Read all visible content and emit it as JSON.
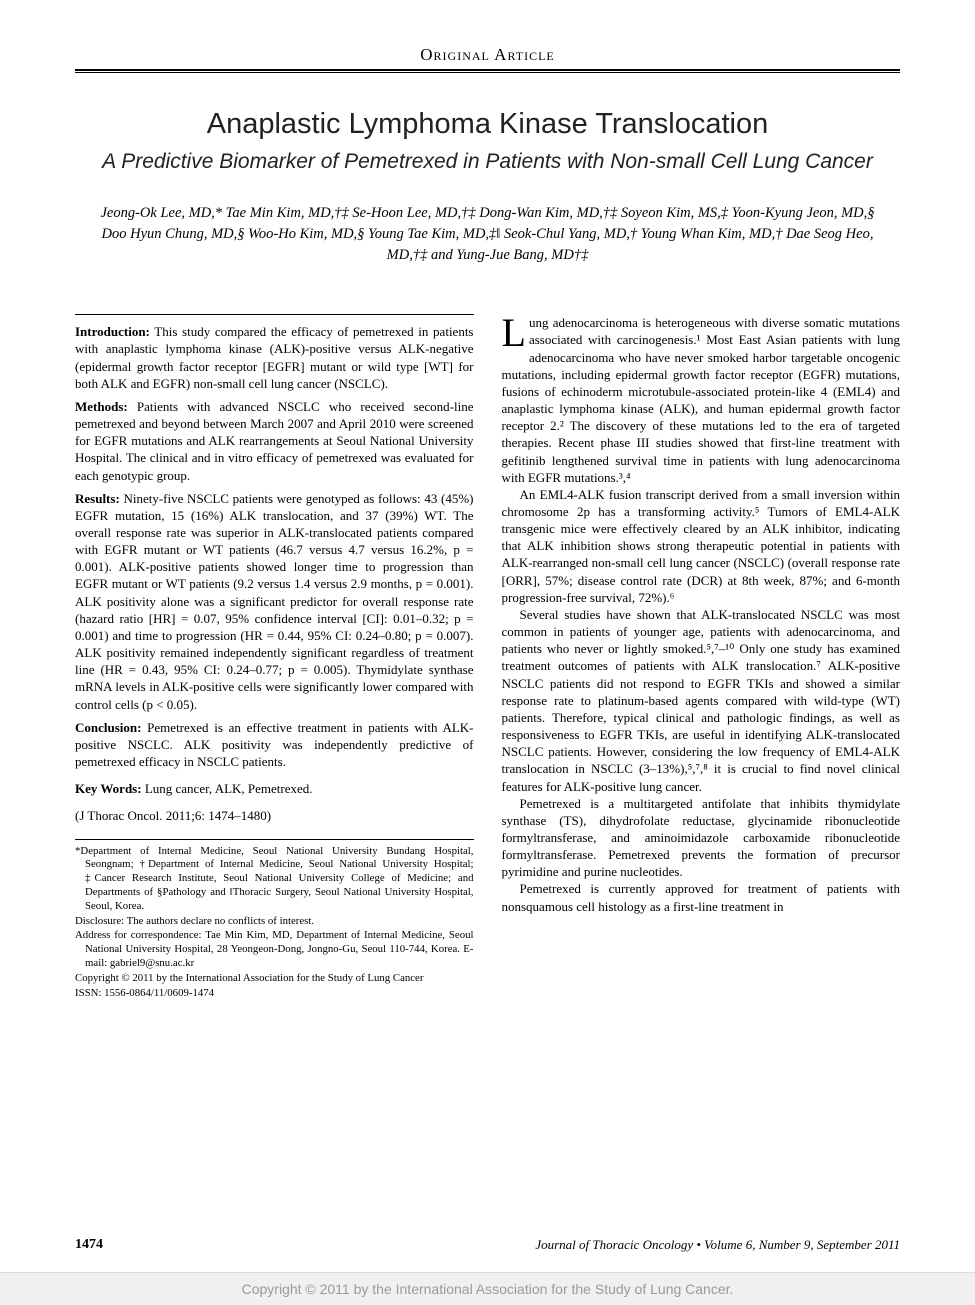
{
  "header": {
    "section": "Original Article"
  },
  "title": "Anaplastic Lymphoma Kinase Translocation",
  "subtitle": "A Predictive Biomarker of Pemetrexed in Patients with Non-small Cell Lung Cancer",
  "authors": "Jeong-Ok Lee, MD,* Tae Min Kim, MD,†‡ Se-Hoon Lee, MD,†‡ Dong-Wan Kim, MD,†‡ Soyeon Kim, MS,‡ Yoon-Kyung Jeon, MD,§ Doo Hyun Chung, MD,§ Woo-Ho Kim, MD,§ Young Tae Kim, MD,‡‖ Seok-Chul Yang, MD,† Young Whan Kim, MD,† Dae Seog Heo, MD,†‡ and Yung-Jue Bang, MD†‡",
  "abstract": {
    "introduction_label": "Introduction:",
    "introduction": " This study compared the efficacy of pemetrexed in patients with anaplastic lymphoma kinase (ALK)-positive versus ALK-negative (epidermal growth factor receptor [EGFR] mutant or wild type [WT] for both ALK and EGFR) non-small cell lung cancer (NSCLC).",
    "methods_label": "Methods:",
    "methods": " Patients with advanced NSCLC who received second-line pemetrexed and beyond between March 2007 and April 2010 were screened for EGFR mutations and ALK rearrangements at Seoul National University Hospital. The clinical and in vitro efficacy of pemetrexed was evaluated for each genotypic group.",
    "results_label": "Results:",
    "results": " Ninety-five NSCLC patients were genotyped as follows: 43 (45%) EGFR mutation, 15 (16%) ALK translocation, and 37 (39%) WT. The overall response rate was superior in ALK-translocated patients compared with EGFR mutant or WT patients (46.7 versus 4.7 versus 16.2%, p = 0.001). ALK-positive patients showed longer time to progression than EGFR mutant or WT patients (9.2 versus 1.4 versus 2.9 months, p = 0.001). ALK positivity alone was a significant predictor for overall response rate (hazard ratio [HR] = 0.07, 95% confidence interval [CI]: 0.01–0.32; p = 0.001) and time to progression (HR = 0.44, 95% CI: 0.24–0.80; p = 0.007). ALK positivity remained independently significant regardless of treatment line (HR = 0.43, 95% CI: 0.24–0.77; p = 0.005). Thymidylate synthase mRNA levels in ALK-positive cells were significantly lower compared with control cells (p < 0.05).",
    "conclusion_label": "Conclusion:",
    "conclusion": " Pemetrexed is an effective treatment in patients with ALK-positive NSCLC. ALK positivity was independently predictive of pemetrexed efficacy in NSCLC patients.",
    "keywords_label": "Key Words:",
    "keywords": " Lung cancer, ALK, Pemetrexed.",
    "citation": "(J Thorac Oncol. 2011;6: 1474–1480)"
  },
  "footnotes": {
    "affil": "*Department of Internal Medicine, Seoul National University Bundang Hospital, Seongnam; †Department of Internal Medicine, Seoul National University Hospital; ‡Cancer Research Institute, Seoul National University College of Medicine; and Departments of §Pathology and ‖Thoracic Surgery, Seoul National University Hospital, Seoul, Korea.",
    "disclosure": "Disclosure: The authors declare no conflicts of interest.",
    "correspondence": "Address for correspondence: Tae Min Kim, MD, Department of Internal Medicine, Seoul National University Hospital, 28 Yeongeon-Dong, Jongno-Gu, Seoul 110-744, Korea. E-mail: gabriel9@snu.ac.kr",
    "copyright": "Copyright © 2011 by the International Association for the Study of Lung Cancer",
    "issn": "ISSN: 1556-0864/11/0609-1474"
  },
  "body": {
    "p1_first": "L",
    "p1": "ung adenocarcinoma is heterogeneous with diverse somatic mutations associated with carcinogenesis.¹ Most East Asian patients with lung adenocarcinoma who have never smoked harbor targetable oncogenic mutations, including epidermal growth factor receptor (EGFR) mutations, fusions of echinoderm microtubule-associated protein-like 4 (EML4) and anaplastic lymphoma kinase (ALK), and human epidermal growth factor receptor 2.² The discovery of these mutations led to the era of targeted therapies. Recent phase III studies showed that first-line treatment with gefitinib lengthened survival time in patients with lung adenocarcinoma with EGFR mutations.³,⁴",
    "p2": "An EML4-ALK fusion transcript derived from a small inversion within chromosome 2p has a transforming activity.⁵ Tumors of EML4-ALK transgenic mice were effectively cleared by an ALK inhibitor, indicating that ALK inhibition shows strong therapeutic potential in patients with ALK-rearranged non-small cell lung cancer (NSCLC) (overall response rate [ORR], 57%; disease control rate (DCR) at 8th week, 87%; and 6-month progression-free survival, 72%).⁶",
    "p3": "Several studies have shown that ALK-translocated NSCLC was most common in patients of younger age, patients with adenocarcinoma, and patients who never or lightly smoked.⁵,⁷–¹⁰ Only one study has examined treatment outcomes of patients with ALK translocation.⁷ ALK-positive NSCLC patients did not respond to EGFR TKIs and showed a similar response rate to platinum-based agents compared with wild-type (WT) patients. Therefore, typical clinical and pathologic findings, as well as responsiveness to EGFR TKIs, are useful in identifying ALK-translocated NSCLC patients. However, considering the low frequency of EML4-ALK translocation in NSCLC (3–13%),⁵,⁷,⁸ it is crucial to find novel clinical features for ALK-positive lung cancer.",
    "p4": "Pemetrexed is a multitargeted antifolate that inhibits thymidylate synthase (TS), dihydrofolate reductase, glycinamide ribonucleotide formyltransferase, and aminoimidazole carboxamide ribonucleotide formyltransferase. Pemetrexed prevents the formation of precursor pyrimidine and purine nucleotides.",
    "p5": "Pemetrexed is currently approved for treatment of patients with nonsquamous cell histology as a first-line treatment in"
  },
  "footer": {
    "page": "1474",
    "journal": "Journal of Thoracic Oncology • Volume 6, Number 9, September 2011"
  },
  "copyright_bar": "Copyright © 2011 by the International Association for the Study of Lung Cancer."
}
